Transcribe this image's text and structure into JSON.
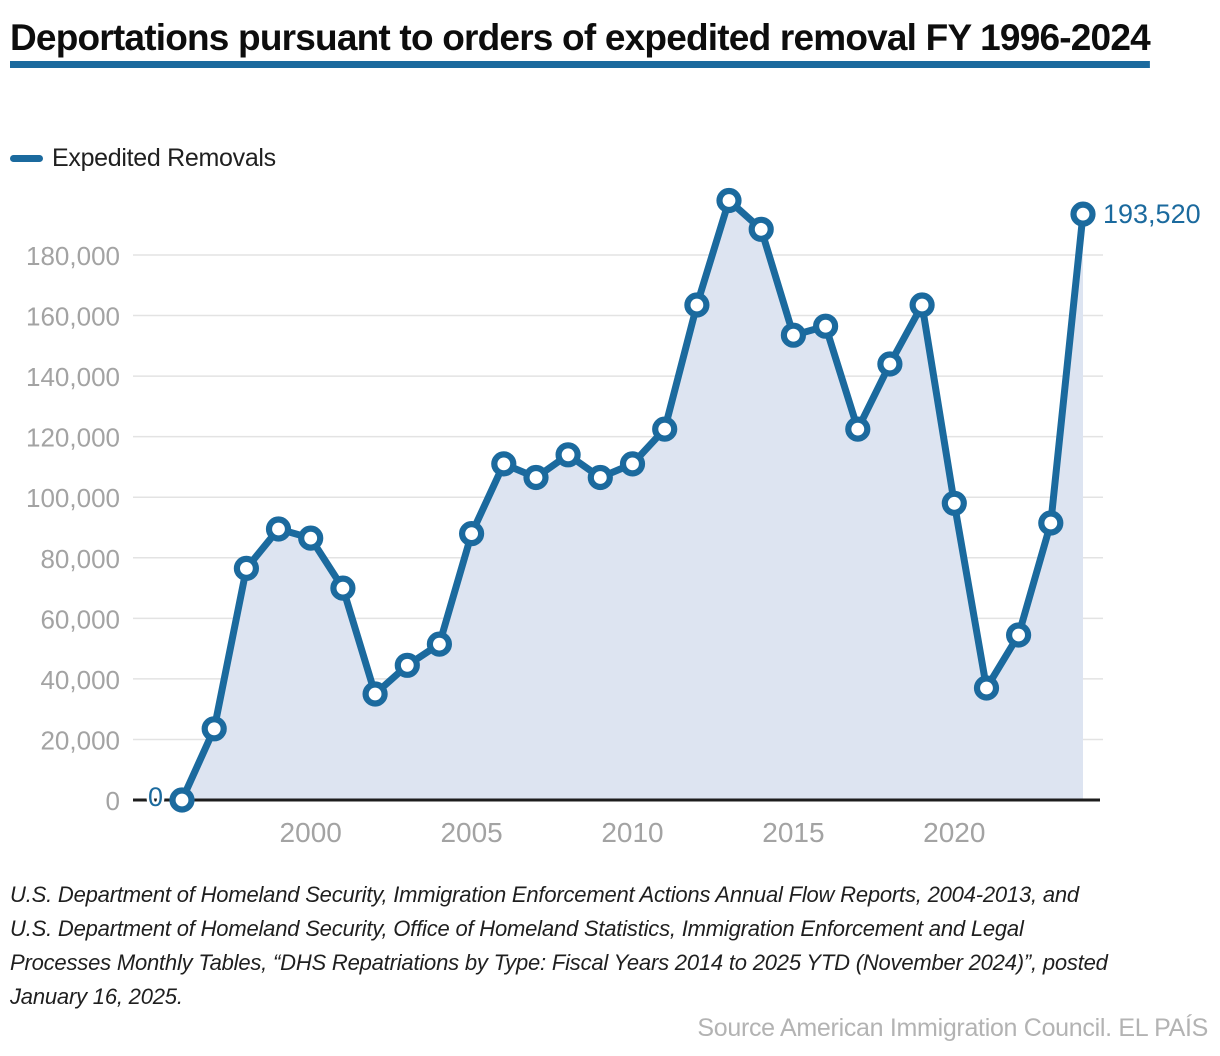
{
  "page": {
    "title": "Deportations pursuant to orders of expedited removal FY 1996-2024",
    "footer_credit": "Source American Immigration Council. EL PAÍS"
  },
  "legend": {
    "label": "Expedited Removals"
  },
  "source": {
    "lines": [
      "U.S. Department of Homeland Security, Immigration Enforcement Actions Annual Flow Reports, 2004-2013, and",
      "U.S. Department of Homeland Security, Office of Homeland Statistics, Immigration Enforcement and Legal",
      "Processes Monthly Tables, “DHS Repatriations by Type: Fiscal Years 2014 to 2025 YTD (November 2024)”, posted",
      "January 16, 2025."
    ]
  },
  "colors": {
    "accent_blue": "#1b6a9e",
    "area_fill": "#dde4f1",
    "grid": "#e3e3e3",
    "axis": "#1d1d1d",
    "tick_label": "#a3a3a3",
    "title_text": "#0d0d0d",
    "credit_gray": "#b3b3b3"
  },
  "chart_data": {
    "type": "line",
    "title": "Deportations pursuant to orders of expedited removal FY 1996-2024",
    "xlabel": "",
    "ylabel": "",
    "grid": true,
    "area": true,
    "legend_position": "top-left",
    "ylim": [
      0,
      200000
    ],
    "yticks": [
      0,
      20000,
      40000,
      60000,
      80000,
      100000,
      120000,
      140000,
      160000,
      180000
    ],
    "ytick_labels": [
      "0",
      "20,000",
      "40,000",
      "60,000",
      "80,000",
      "100,000",
      "120,000",
      "140,000",
      "160,000",
      "180,000"
    ],
    "xticks": [
      2000,
      2005,
      2010,
      2015,
      2020
    ],
    "xtick_labels": [
      "2000",
      "2005",
      "2010",
      "2015",
      "2020"
    ],
    "point_labels": {
      "first": "0",
      "last": "193,520"
    },
    "series": [
      {
        "name": "Expedited Removals",
        "x": [
          1996,
          1997,
          1998,
          1999,
          2000,
          2001,
          2002,
          2003,
          2004,
          2005,
          2006,
          2007,
          2008,
          2009,
          2010,
          2011,
          2012,
          2013,
          2014,
          2015,
          2016,
          2017,
          2018,
          2019,
          2020,
          2021,
          2022,
          2023,
          2024
        ],
        "values": [
          0,
          23500,
          76500,
          89500,
          86500,
          70000,
          35000,
          44500,
          51500,
          88000,
          111000,
          106500,
          114000,
          106500,
          111000,
          122500,
          163500,
          198000,
          188500,
          153500,
          156500,
          122500,
          144000,
          163500,
          98000,
          37000,
          54500,
          91500,
          193520
        ]
      }
    ]
  }
}
